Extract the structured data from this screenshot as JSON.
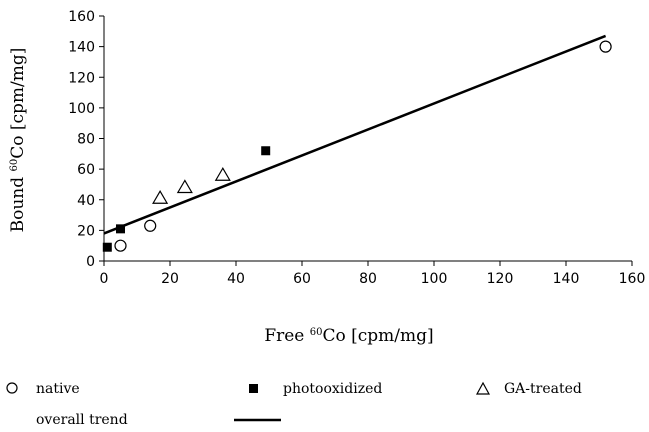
{
  "chart_data": {
    "type": "scatter",
    "title": "",
    "xlabel": {
      "prefix": "Free ",
      "sup": "60",
      "suffix": "Co [cpm/mg]"
    },
    "ylabel": {
      "prefix": "Bound ",
      "sup": "60",
      "suffix": "Co [cpm/mg]"
    },
    "xlim": [
      0,
      160
    ],
    "ylim": [
      0,
      160
    ],
    "xticks": [
      0,
      20,
      40,
      60,
      80,
      100,
      120,
      140,
      160
    ],
    "yticks": [
      0,
      20,
      40,
      60,
      80,
      100,
      120,
      140,
      160
    ],
    "grid": false,
    "legend_position": "bottom",
    "series": [
      {
        "name": "native",
        "marker": "open-circle",
        "points": [
          [
            5,
            10
          ],
          [
            14,
            23
          ],
          [
            152,
            140
          ]
        ]
      },
      {
        "name": "photooxidized",
        "marker": "filled-square",
        "points": [
          [
            1,
            9
          ],
          [
            5,
            21
          ],
          [
            49,
            72
          ]
        ]
      },
      {
        "name": "GA-treated",
        "marker": "open-triangle",
        "points": [
          [
            17,
            41
          ],
          [
            24.5,
            48
          ],
          [
            36,
            56
          ]
        ]
      }
    ],
    "trendline": {
      "name": "overall trend",
      "points": [
        [
          0,
          18
        ],
        [
          152,
          147
        ]
      ]
    }
  }
}
